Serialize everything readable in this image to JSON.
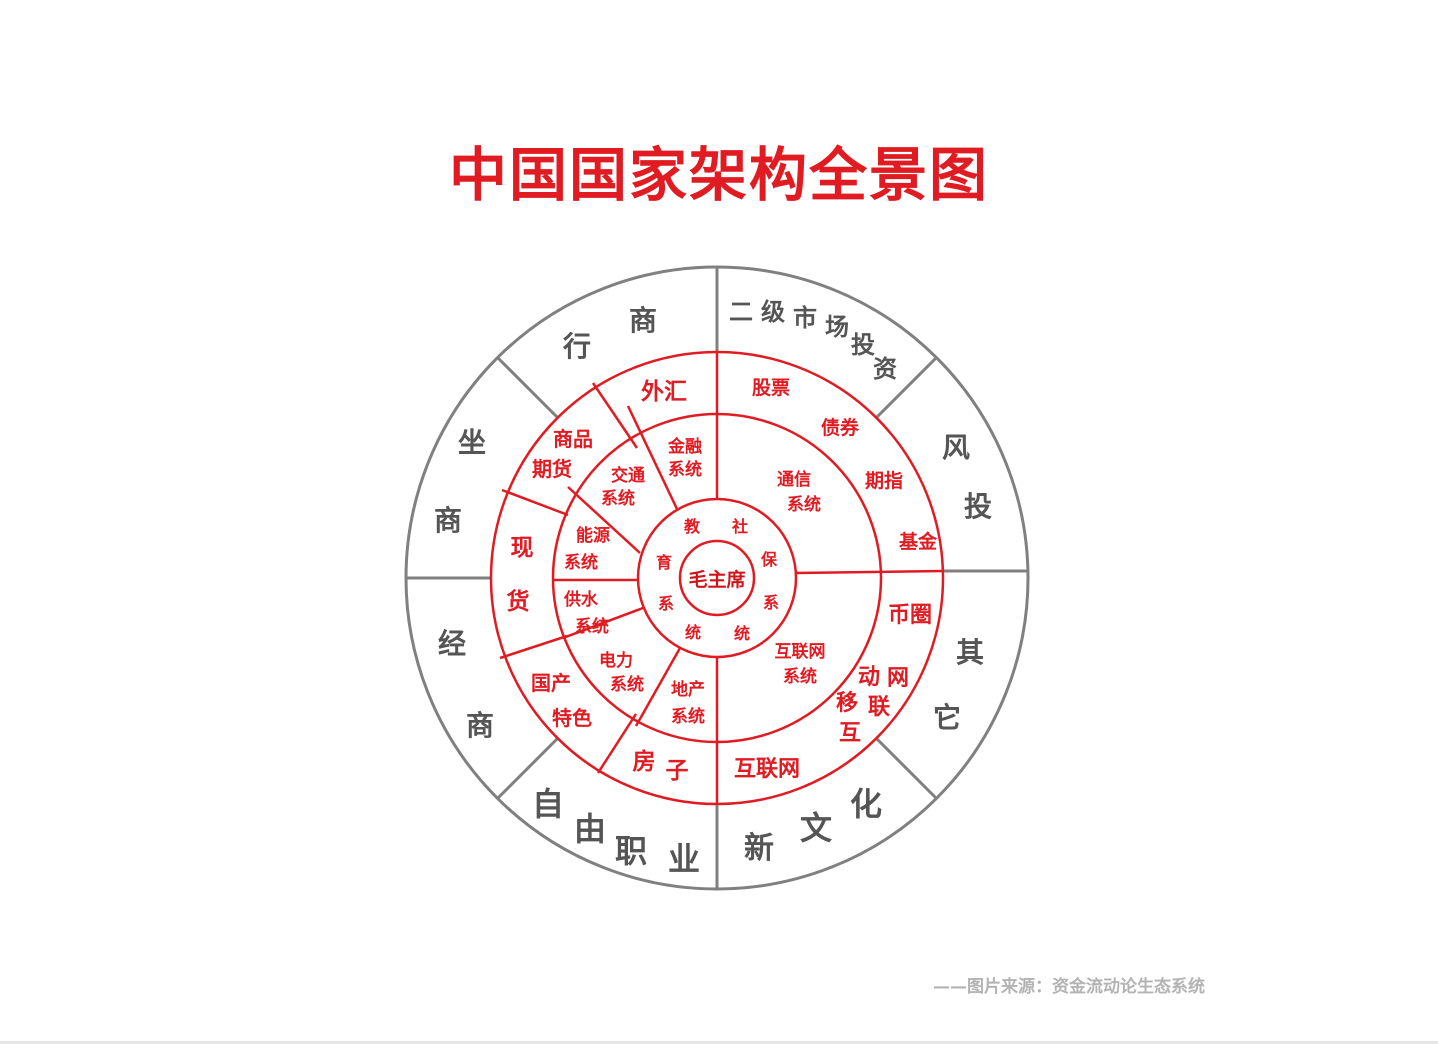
{
  "title": "中国国家架构全景图",
  "source": "——图片来源：资金流动论生态系统",
  "colors": {
    "accent": "#e01b22",
    "gray": "#777777"
  },
  "center": "毛主席",
  "ring1": {
    "education": [
      "教",
      "育",
      "系",
      "统"
    ],
    "social": [
      "社",
      "保",
      "系",
      "统"
    ]
  },
  "ring2": {
    "finance": [
      "金融",
      "系统"
    ],
    "transport": [
      "交通",
      "系统"
    ],
    "energy": [
      "能源",
      "系统"
    ],
    "water": [
      "供水",
      "系统"
    ],
    "power": [
      "电力",
      "系统"
    ],
    "realestate": [
      "地产",
      "系统"
    ],
    "internet": [
      "互联网",
      "系统"
    ],
    "telecom": [
      "通信",
      "系统"
    ]
  },
  "ring3": {
    "forex": "外汇",
    "commodity": [
      "商品",
      "期货"
    ],
    "spot": [
      "现",
      "货"
    ],
    "domestic": [
      "国产",
      "特色"
    ],
    "house": [
      "房",
      "子"
    ],
    "web": "互联网",
    "mobile": [
      "动",
      "网",
      "移",
      "联",
      "互"
    ],
    "coin": "币圈",
    "fund": "基金",
    "index": "期指",
    "bond": "债券",
    "stock": "股票"
  },
  "ring4": {
    "merchant": [
      "商",
      "行"
    ],
    "sitting": [
      "坐",
      "商"
    ],
    "trader": [
      "经",
      "商"
    ],
    "freelance": [
      "自",
      "由",
      "职",
      "业"
    ],
    "culture": [
      "新",
      "文",
      "化"
    ],
    "other": [
      "其",
      "它"
    ],
    "vc": [
      "风",
      "投"
    ],
    "secondary": [
      "二",
      "级",
      "市",
      "场",
      "投",
      "资"
    ]
  }
}
